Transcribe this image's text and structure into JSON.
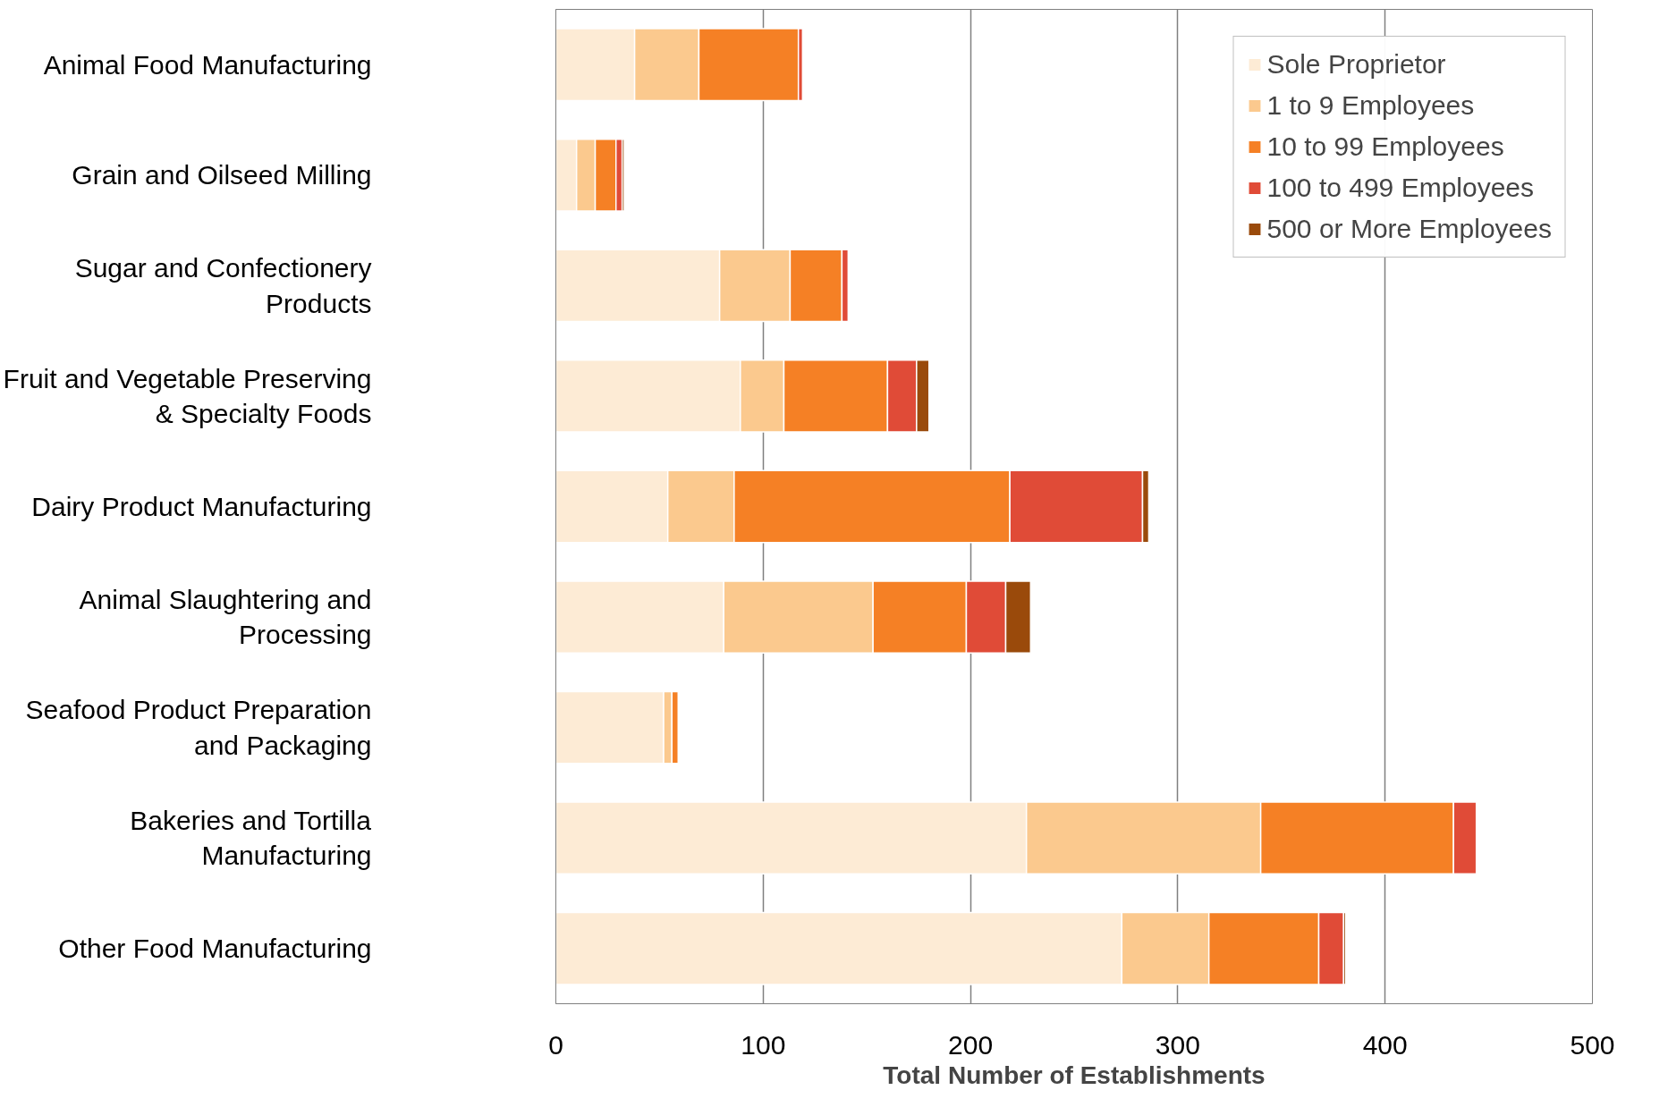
{
  "chart_data": {
    "type": "bar",
    "orientation": "horizontal",
    "stacked": true,
    "xlabel": "Total Number of Establishments",
    "categories": [
      "Animal Food Manufacturing",
      "Grain and Oilseed Milling",
      "Sugar and Confectionery Products",
      "Fruit and Vegetable Preserving & Specialty Foods",
      "Dairy Product Manufacturing",
      "Animal Slaughtering and Processing",
      "Seafood Product Preparation and Packaging",
      "Bakeries and Tortilla Manufacturing",
      "Other Food Manufacturing"
    ],
    "series": [
      {
        "name": "Sole Proprietor",
        "color": "#fdebd5",
        "values": [
          38,
          10,
          79,
          89,
          54,
          81,
          52,
          227,
          273
        ]
      },
      {
        "name": "1 to 9 Employees",
        "color": "#fbc98e",
        "values": [
          31,
          9,
          34,
          21,
          32,
          72,
          4,
          113,
          42
        ]
      },
      {
        "name": "10 to 99 Employees",
        "color": "#f58025",
        "values": [
          48,
          10,
          25,
          50,
          133,
          45,
          3,
          93,
          53
        ]
      },
      {
        "name": "100 to 499 Employees",
        "color": "#e04b37",
        "values": [
          2,
          3,
          3,
          14,
          64,
          19,
          0,
          11,
          12
        ]
      },
      {
        "name": "500 or More Employees",
        "color": "#9a4a0b",
        "values": [
          0,
          1,
          0,
          6,
          3,
          12,
          0,
          0,
          1
        ]
      }
    ],
    "xlim": [
      0,
      500
    ],
    "xticks": [
      0,
      100,
      200,
      300,
      400,
      500
    ],
    "grid": "x",
    "legend": "top right"
  }
}
